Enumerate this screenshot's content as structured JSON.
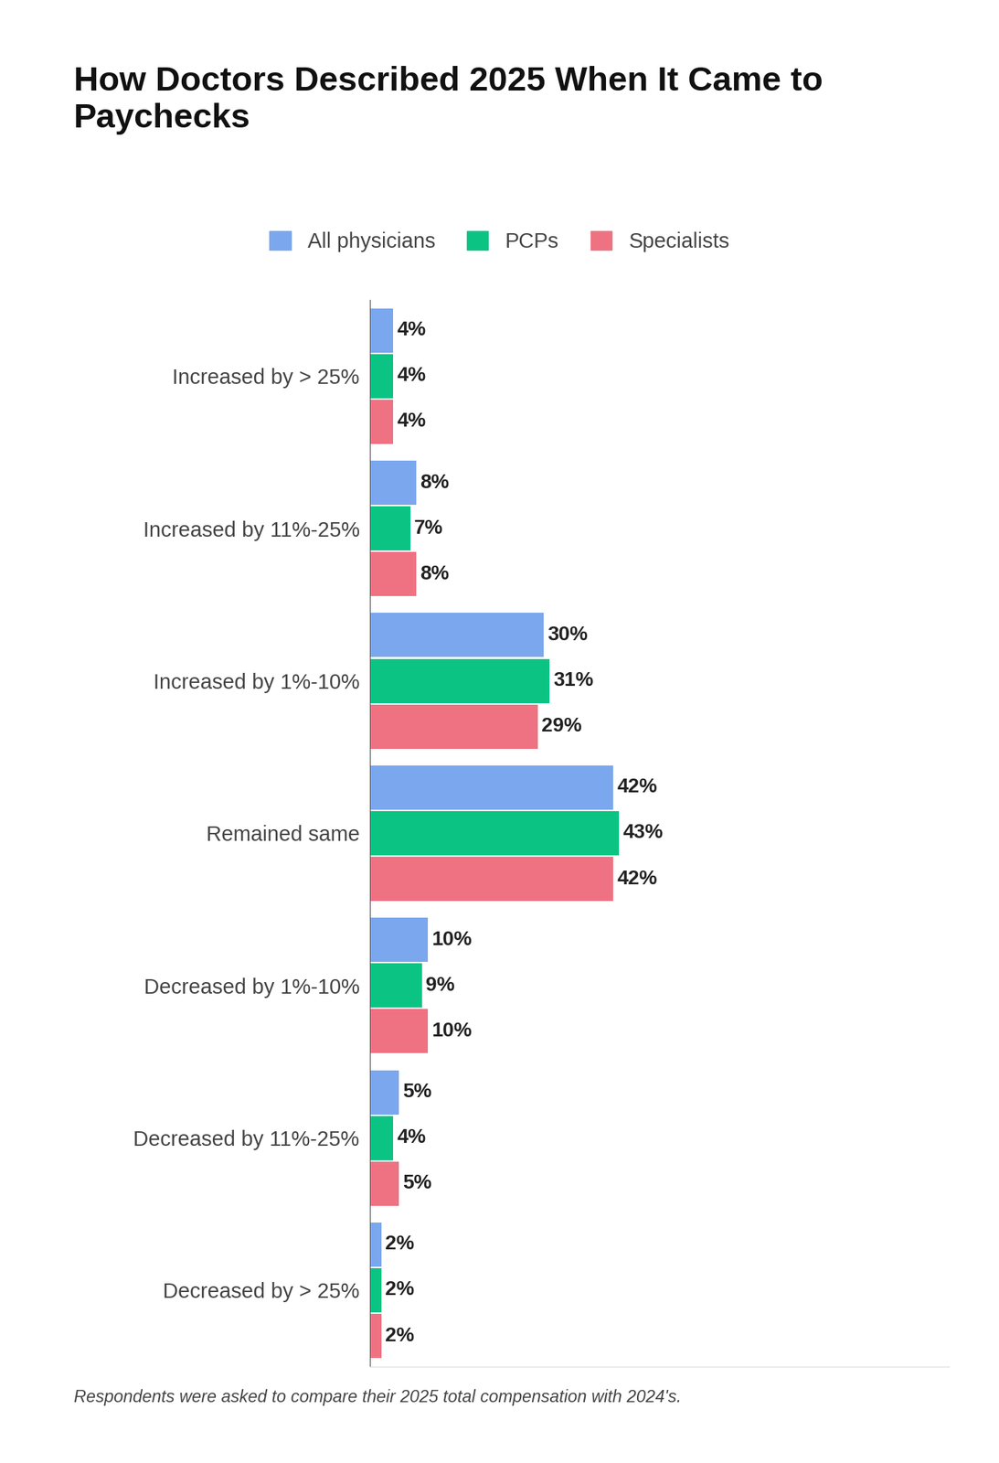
{
  "chart_data": {
    "type": "bar",
    "title": "How Doctors Described 2025 When It Came to Paychecks",
    "orientation": "horizontal",
    "categories": [
      "Increased by > 25%",
      "Increased by 11%-25%",
      "Increased by 1%-10%",
      "Remained same",
      "Decreased by 1%-10%",
      "Decreased by 11%-25%",
      "Decreased by > 25%"
    ],
    "series": [
      {
        "name": "All physicians",
        "color": "#7BA7EE",
        "values": [
          4,
          8,
          30,
          42,
          10,
          5,
          2
        ],
        "value_labels": [
          "4%",
          "8%",
          "30%",
          "42%",
          "10%",
          "5%",
          "2%"
        ]
      },
      {
        "name": "PCPs",
        "color": "#0BC484",
        "values": [
          4,
          7,
          31,
          43,
          9,
          4,
          2
        ],
        "value_labels": [
          "4%",
          "7%",
          "31%",
          "43%",
          "9%",
          "4%",
          "2%"
        ]
      },
      {
        "name": "Specialists",
        "color": "#EF7282",
        "values": [
          4,
          8,
          29,
          42,
          10,
          5,
          2
        ],
        "value_labels": [
          "4%",
          "8%",
          "29%",
          "42%",
          "10%",
          "5%",
          "2%"
        ]
      }
    ],
    "xlim": [
      0,
      100
    ],
    "data_labels": true,
    "tick_labels": "y",
    "legend": "upper center",
    "grid": false,
    "footnote": "Respondents were asked to compare their 2025 total compensation with 2024's."
  }
}
